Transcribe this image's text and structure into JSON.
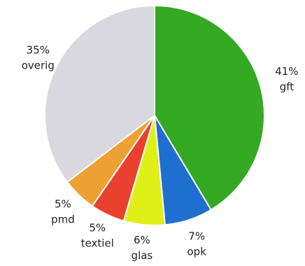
{
  "chart_data": {
    "type": "pie",
    "start": "top",
    "direction": "clockwise",
    "slices": [
      {
        "name": "gft",
        "label": "gft",
        "value": 41,
        "value_label": "41%",
        "color": "#33aa22"
      },
      {
        "name": "opk",
        "label": "opk",
        "value": 7,
        "value_label": "7%",
        "color": "#1e6fd0"
      },
      {
        "name": "glas",
        "label": "glas",
        "value": 6,
        "value_label": "6%",
        "color": "#dff018"
      },
      {
        "name": "textiel",
        "label": "textiel",
        "value": 5,
        "value_label": "5%",
        "color": "#ea4030"
      },
      {
        "name": "pmd",
        "label": "pmd",
        "value": 5,
        "value_label": "5%",
        "color": "#eda133"
      },
      {
        "name": "overig",
        "label": "overig",
        "value": 35,
        "value_label": "35%",
        "color": "#d9d8de"
      }
    ]
  }
}
